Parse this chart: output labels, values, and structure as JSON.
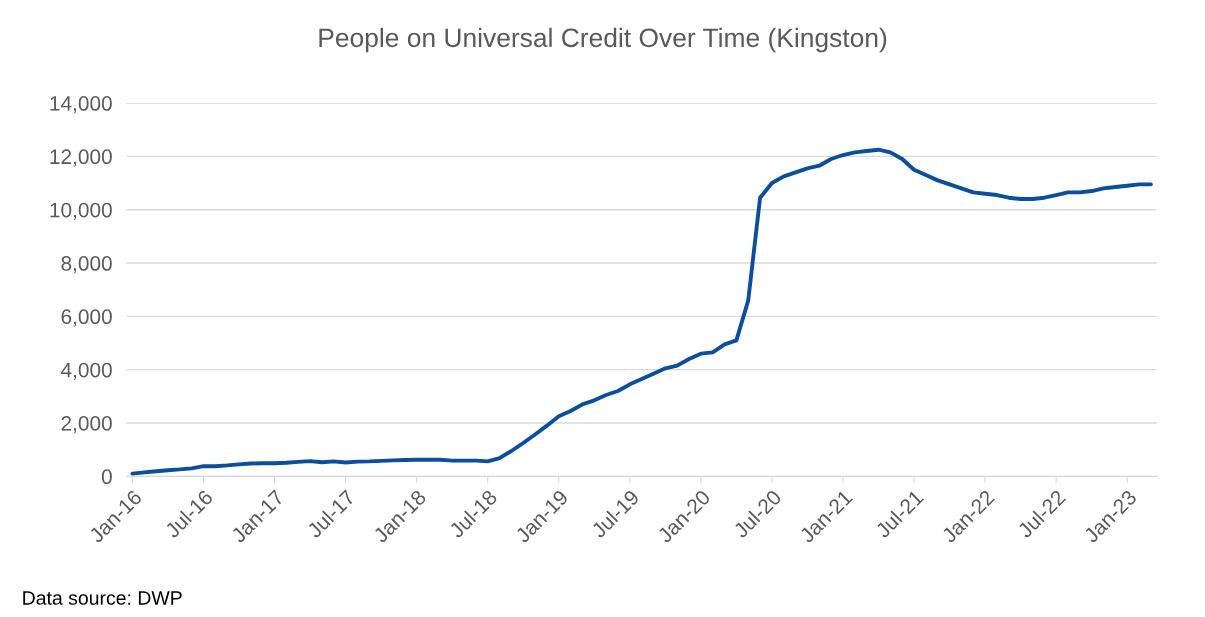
{
  "chart_data": {
    "type": "line",
    "title": "People on Universal Credit Over Time (Kingston)",
    "categories": [
      "Jan-16",
      null,
      null,
      null,
      null,
      null,
      "Jul-16",
      null,
      null,
      null,
      null,
      null,
      "Jan-17",
      null,
      null,
      null,
      null,
      null,
      "Jul-17",
      null,
      null,
      null,
      null,
      null,
      "Jan-18",
      null,
      null,
      null,
      null,
      null,
      "Jul-18",
      null,
      null,
      null,
      null,
      null,
      "Jan-19",
      null,
      null,
      null,
      null,
      null,
      "Jul-19",
      null,
      null,
      null,
      null,
      null,
      "Jan-20",
      null,
      null,
      null,
      null,
      null,
      "Jul-20",
      null,
      null,
      null,
      null,
      null,
      "Jan-21",
      null,
      null,
      null,
      null,
      null,
      "Jul-21",
      null,
      null,
      null,
      null,
      null,
      "Jan-22",
      null,
      null,
      null,
      null,
      null,
      "Jul-22",
      null,
      null,
      null,
      null,
      null,
      "Jan-23",
      null,
      null
    ],
    "series": [
      {
        "color": "#0b4f9c",
        "values": [
          100,
          150,
          190,
          230,
          260,
          300,
          380,
          380,
          410,
          450,
          480,
          490,
          490,
          510,
          540,
          570,
          530,
          560,
          520,
          550,
          560,
          580,
          600,
          610,
          620,
          620,
          620,
          590,
          590,
          590,
          560,
          680,
          950,
          1250,
          1570,
          1900,
          2250,
          2450,
          2700,
          2850,
          3050,
          3200,
          3450,
          3650,
          3850,
          4050,
          4150,
          4400,
          4600,
          4650,
          4950,
          5100,
          6600,
          10450,
          11000,
          11250,
          11400,
          11550,
          11650,
          11900,
          12050,
          12150,
          12200,
          12250,
          12150,
          11900,
          11500,
          11300,
          11100,
          10950,
          10800,
          10650,
          10600,
          10550,
          10450,
          10400,
          10400,
          10450,
          10550,
          10650,
          10650,
          10700,
          10800,
          10850,
          10900,
          10950,
          10950
        ]
      }
    ],
    "ylim": [
      0,
      14000
    ],
    "yticks": [
      {
        "value": 0,
        "label": "0"
      },
      {
        "value": 2000,
        "label": "2,000"
      },
      {
        "value": 4000,
        "label": "4,000"
      },
      {
        "value": 6000,
        "label": "6,000"
      },
      {
        "value": 8000,
        "label": "8,000"
      },
      {
        "value": 10000,
        "label": "10,000"
      },
      {
        "value": 12000,
        "label": "12,000"
      },
      {
        "value": 14000,
        "label": "14,000"
      }
    ],
    "grid": "y",
    "legend": false,
    "marker": "none",
    "line_style": "solid",
    "annotations": [
      "Data source: DWP"
    ]
  }
}
